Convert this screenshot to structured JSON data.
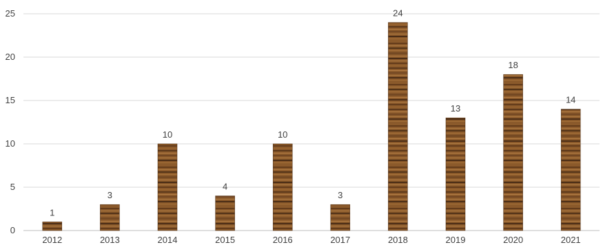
{
  "chart_data": {
    "type": "bar",
    "title": "",
    "xlabel": "",
    "ylabel": "",
    "categories": [
      "2012",
      "2013",
      "2014",
      "2015",
      "2016",
      "2017",
      "2018",
      "2019",
      "2020",
      "2021"
    ],
    "values": [
      1,
      3,
      10,
      4,
      10,
      3,
      24,
      13,
      18,
      14
    ],
    "data_labels": [
      "1",
      "3",
      "10",
      "4",
      "10",
      "3",
      "24",
      "13",
      "18",
      "14"
    ],
    "ylim": [
      0,
      25
    ],
    "yticks": [
      0,
      5,
      10,
      15,
      20,
      25
    ],
    "ytick_labels": [
      "0",
      "5",
      "10",
      "15",
      "20",
      "25"
    ],
    "grid": "horizontal",
    "legend": "none",
    "bar_fill": "wood texture",
    "colors": {
      "wood_base": "#8B5A2B",
      "wood_dark": "#3b2210",
      "wood_light": "#c08a4e",
      "grid": "#d9d9d9",
      "text": "#404040"
    }
  }
}
